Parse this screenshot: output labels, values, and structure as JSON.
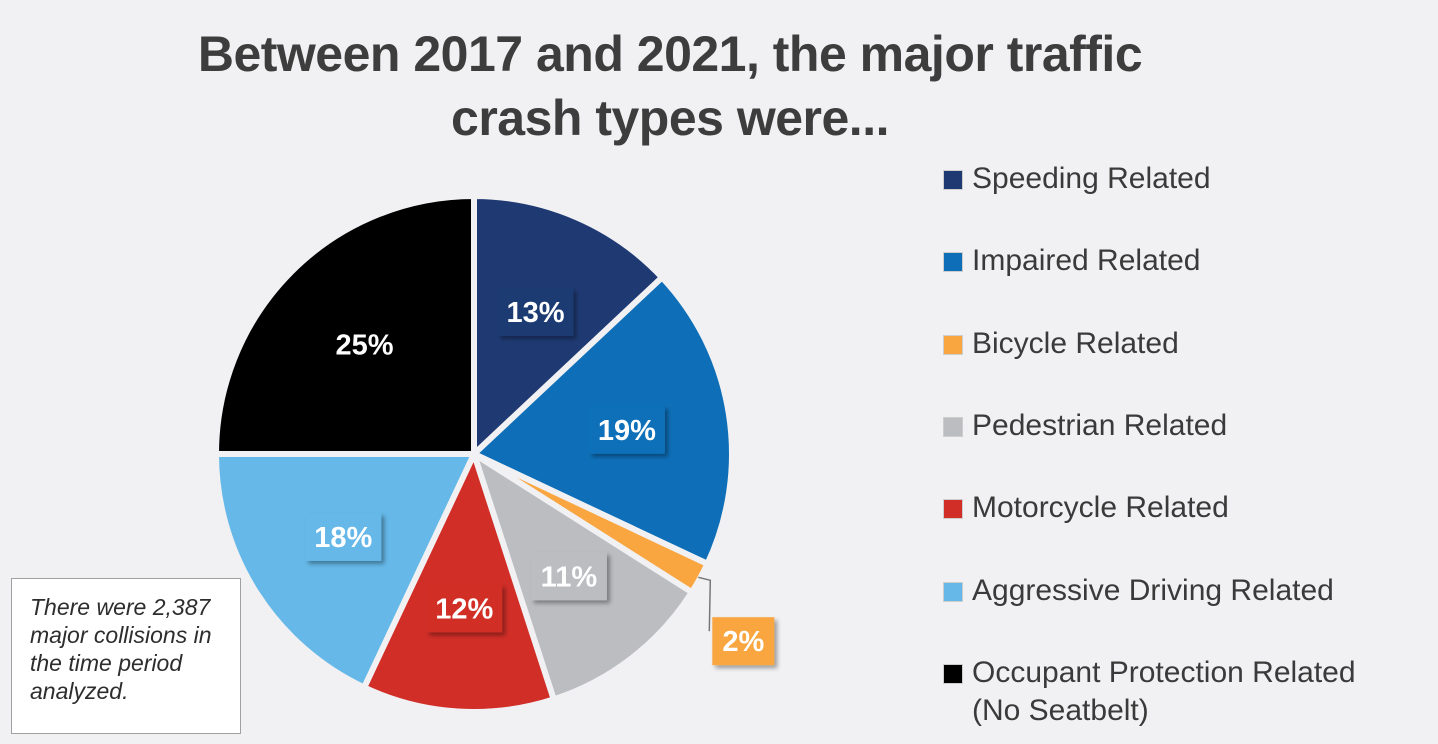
{
  "title": {
    "line1": "Between 2017 and 2021, the major traffic",
    "line2": "crash types were..."
  },
  "note": "There were 2,387 major collisions in the time period analyzed.",
  "chart_data": {
    "type": "pie",
    "title": "Between 2017 and 2021, the major traffic crash types were...",
    "legend_position": "right",
    "slices": [
      {
        "name": "Speeding Related",
        "value": 13,
        "label": "13%",
        "color": "#1f3a73"
      },
      {
        "name": "Impaired Related",
        "value": 19,
        "label": "19%",
        "color": "#0e6fb8"
      },
      {
        "name": "Bicycle Related",
        "value": 2,
        "label": "2%",
        "color": "#f9a540"
      },
      {
        "name": "Pedestrian Related",
        "value": 11,
        "label": "11%",
        "color": "#bcbdc1"
      },
      {
        "name": "Motorcycle Related",
        "value": 12,
        "label": "12%",
        "color": "#d12e28"
      },
      {
        "name": "Aggressive Driving Related",
        "value": 18,
        "label": "18%",
        "color": "#65b8e8"
      },
      {
        "name": "Occupant Protection Related (No Seatbelt)",
        "value": 25,
        "label": "25%",
        "color": "#000000"
      }
    ]
  }
}
